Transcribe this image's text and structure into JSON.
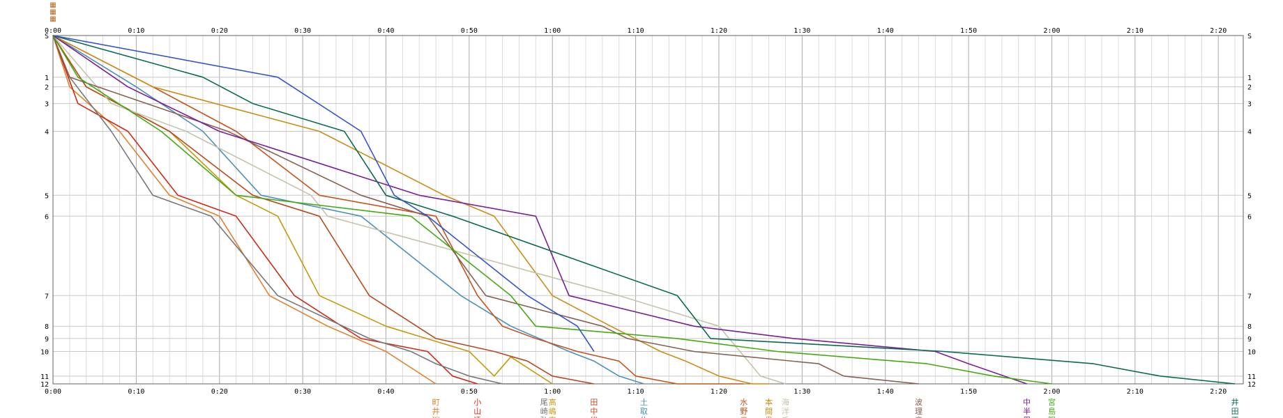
{
  "chart_data": {
    "type": "line",
    "title": "",
    "xlabel": "",
    "ylabel": "",
    "xlim": [
      0,
      143
    ],
    "grid": true,
    "x_ticks": [
      "0:00",
      "0:10",
      "0:20",
      "0:30",
      "0:40",
      "0:50",
      "1:00",
      "1:10",
      "1:20",
      "1:30",
      "1:40",
      "1:50",
      "2:00",
      "2:10",
      "2:20"
    ],
    "y_ticks": [
      "S",
      "1",
      "2",
      "3",
      "4",
      "5",
      "6",
      "7",
      "8",
      "9",
      "10",
      "11",
      "12"
    ],
    "y_values": [
      0,
      4.93,
      6.07,
      8.04,
      11.33,
      18.89,
      21.36,
      30.75,
      34.37,
      35.83,
      37.36,
      40.27,
      41.19
    ],
    "corner_marks": [
      "▦",
      "▦",
      "▦"
    ],
    "series": [
      {
        "labels": [
          "町",
          "井",
          "瑞"
        ],
        "color": "#e0812e",
        "x": [
          0,
          2,
          8,
          14,
          20,
          26,
          33,
          40,
          46
        ],
        "y": [
          0,
          6.07,
          11.33,
          18.89,
          21.36,
          30.75,
          34.37,
          37.36,
          41.19
        ]
      },
      {
        "labels": [
          "小",
          "山",
          "達"
        ],
        "color": "#cc2a16",
        "x": [
          0,
          3,
          9,
          15,
          22,
          29,
          37,
          45,
          48,
          51
        ],
        "y": [
          0,
          8.04,
          11.33,
          18.89,
          21.36,
          30.75,
          35.83,
          37.36,
          40.27,
          41.19
        ]
      },
      {
        "labels": [
          "尾",
          "崎",
          "弘"
        ],
        "color": "#777777",
        "x": [
          0,
          2,
          7,
          12,
          19,
          27,
          38,
          43,
          46,
          50,
          54,
          59
        ],
        "y": [
          0,
          4.93,
          11.33,
          18.89,
          21.36,
          30.75,
          35.83,
          37.36,
          38.81,
          40.27,
          41.19,
          41.19
        ]
      },
      {
        "labels": [
          "高",
          "嶋",
          "直"
        ],
        "color": "#c49a0a",
        "x": [
          0,
          4,
          14,
          22,
          27,
          32,
          40,
          50,
          53,
          55,
          60
        ],
        "y": [
          0,
          6.07,
          11.33,
          18.89,
          21.36,
          30.75,
          34.37,
          37.36,
          40.27,
          38.0,
          41.19
        ]
      },
      {
        "labels": [
          "田",
          "中",
          "総"
        ],
        "color": "#b84a20",
        "x": [
          0,
          4,
          14,
          24,
          32,
          38,
          46,
          53,
          57,
          60,
          65
        ],
        "y": [
          0,
          6.07,
          11.33,
          18.89,
          21.36,
          30.75,
          35.83,
          37.36,
          38.5,
          40.27,
          41.19
        ]
      },
      {
        "labels": [
          "土",
          "取",
          "佑"
        ],
        "color": "#4a90b8",
        "x": [
          0,
          10,
          18,
          25,
          37,
          49,
          55,
          62,
          65,
          68,
          71
        ],
        "y": [
          0,
          6.07,
          11.33,
          18.89,
          21.36,
          30.75,
          34.37,
          37.36,
          38.5,
          40.27,
          41.19
        ]
      },
      {
        "labels": [
          "水",
          "野",
          "元"
        ],
        "color": "#c5531c",
        "x": [
          0,
          12,
          22,
          32,
          46,
          51,
          54,
          58,
          63,
          68,
          70,
          75,
          80,
          83
        ],
        "y": [
          0,
          6.07,
          11.33,
          18.89,
          21.36,
          30.75,
          34.37,
          35.83,
          37.36,
          38.5,
          40.27,
          41.19,
          41.19,
          41.19
        ]
      },
      {
        "labels": [
          "本",
          "間",
          "貴"
        ],
        "color": "#cc8c12",
        "x": [
          0,
          12,
          32,
          47,
          53,
          60,
          67,
          73,
          76,
          80,
          84,
          86
        ],
        "y": [
          0,
          6.07,
          11.33,
          18.89,
          21.36,
          30.75,
          34.37,
          37.36,
          38.5,
          40.27,
          41.19,
          41.19
        ]
      },
      {
        "labels": [
          "海",
          "洋",
          "千"
        ],
        "color": "#c6c2ac",
        "x": [
          0,
          7,
          16,
          31,
          33,
          68,
          80,
          85,
          88
        ],
        "y": [
          0,
          8.04,
          11.33,
          18.89,
          21.36,
          30.75,
          34.37,
          40.27,
          41.19
        ]
      },
      {
        "labels": [
          "波",
          "理",
          "竜"
        ],
        "color": "#886050",
        "x": [
          0,
          2,
          21,
          37,
          45,
          52,
          66,
          69,
          77,
          92,
          95,
          104
        ],
        "y": [
          0,
          4.93,
          11.33,
          18.89,
          21.36,
          30.75,
          34.37,
          35.83,
          37.36,
          38.81,
          40.27,
          41.19
        ]
      },
      {
        "labels": [
          "中",
          "半",
          "周"
        ],
        "color": "#7a1e96",
        "x": [
          0,
          9,
          20,
          44,
          58,
          62,
          77,
          89,
          106,
          110,
          117
        ],
        "y": [
          0,
          6.07,
          11.33,
          18.89,
          21.36,
          30.75,
          34.37,
          35.83,
          37.36,
          38.81,
          41.19
        ]
      },
      {
        "labels": [
          "宮",
          "島",
          "陽"
        ],
        "color": "#44aa11",
        "x": [
          0,
          3,
          13,
          22,
          43,
          55,
          58,
          75,
          87,
          105,
          113,
          120
        ],
        "y": [
          0,
          4.93,
          11.33,
          18.89,
          21.36,
          30.75,
          34.37,
          35.83,
          37.36,
          38.81,
          40.27,
          41.19
        ]
      },
      {
        "labels": [
          "井",
          "田",
          "正"
        ],
        "color": "#0a6a50",
        "x": [
          0,
          18,
          24,
          35,
          40,
          48,
          75,
          79,
          107,
          125,
          133,
          142
        ],
        "y": [
          0,
          4.93,
          8.04,
          11.33,
          18.89,
          21.36,
          30.75,
          35.83,
          37.36,
          38.81,
          40.27,
          41.19
        ]
      },
      {
        "labels": [],
        "color": "#3355cc",
        "x": [
          0,
          27,
          37,
          41,
          45,
          57,
          63,
          65
        ],
        "y": [
          0,
          4.93,
          11.33,
          18.89,
          21.36,
          30.75,
          34.37,
          37.36
        ]
      }
    ]
  }
}
